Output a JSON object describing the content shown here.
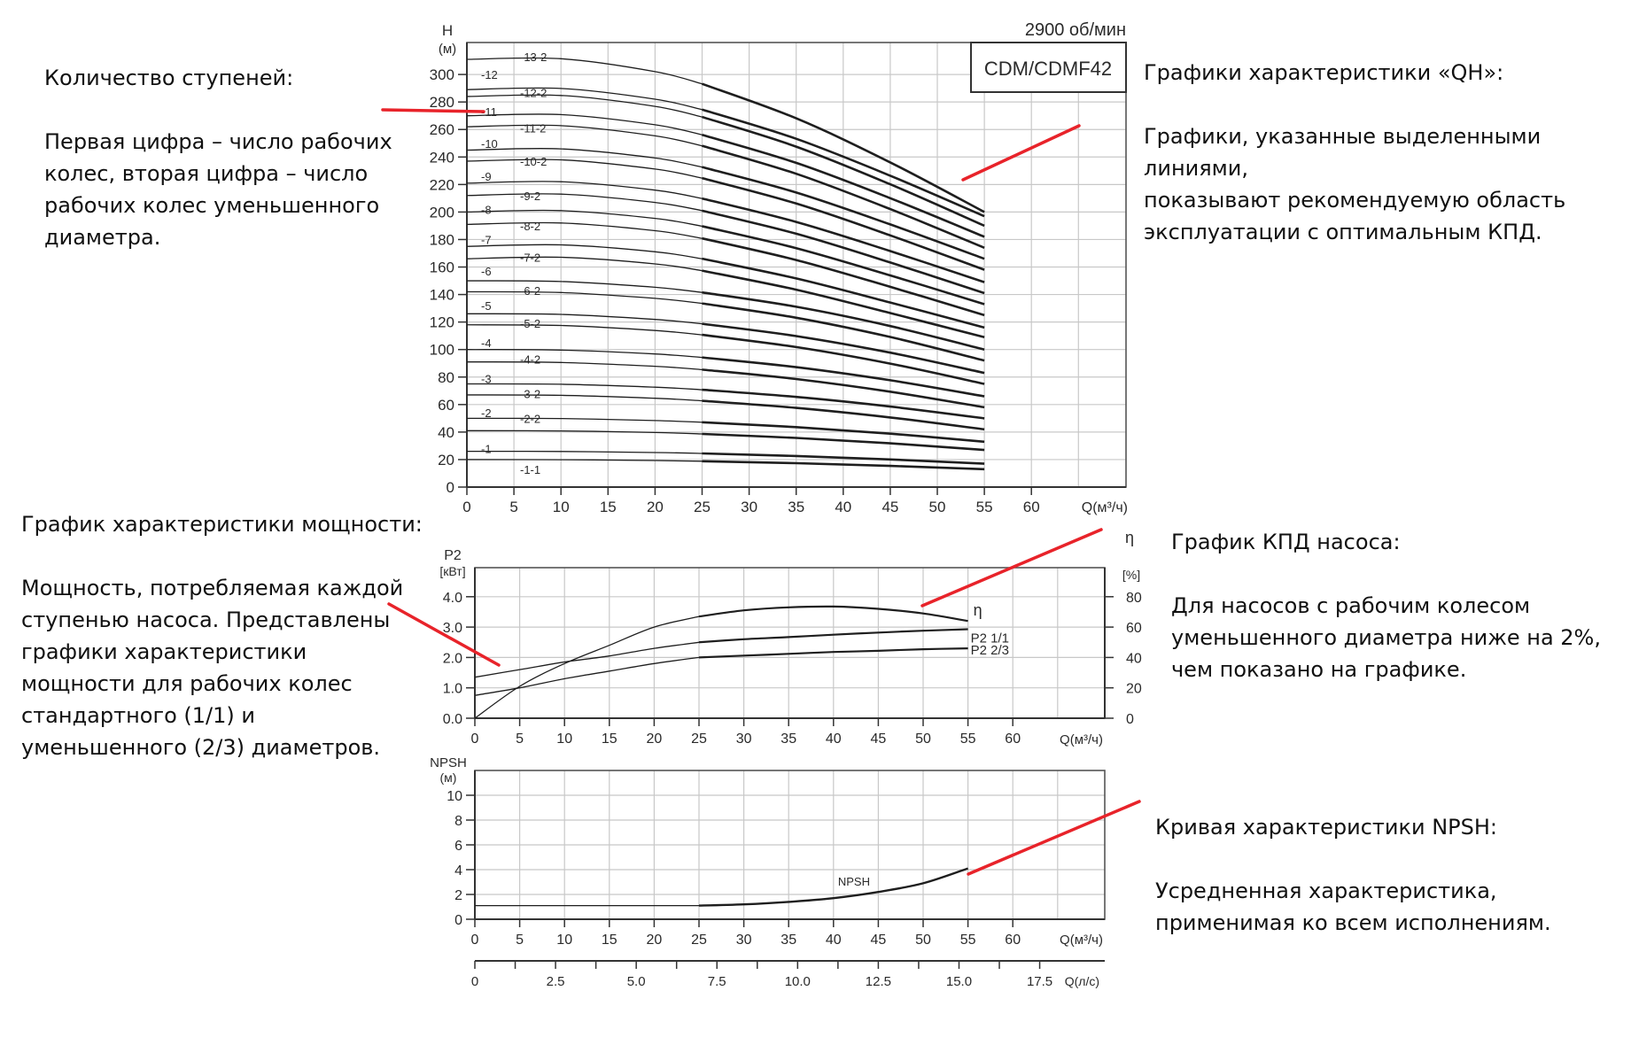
{
  "annotations": {
    "stages": {
      "title": "Количество ступеней:",
      "body": "Первая цифра – число рабочих\nколес, вторая цифра – число\nрабочих колес уменьшенного\nдиаметра."
    },
    "qh": {
      "title": "Графики характеристики «QH»:",
      "body": "Графики, указанные выделенными линиями,\nпоказывают рекомендуемую область\nэксплуатации с оптимальным КПД."
    },
    "power": {
      "title": "График характеристики мощности:",
      "body": "Мощность, потребляемая каждой\nступенью насоса. Представлены\nграфики характеристики\nмощности для рабочих колес\nстандартного (1/1) и\nуменьшенного (2/3) диаметров."
    },
    "efficiency": {
      "title": "График КПД насоса:",
      "body": "Для насосов с рабочим колесом\nуменьшенного диаметра ниже на 2%,\nчем показано на графике."
    },
    "npsh": {
      "title": "Кривая характеристики NPSH:",
      "body": "Усредненная характеристика,\nприменимая ко всем исполнениям."
    }
  },
  "colors": {
    "pointer": "#e8232a",
    "curve": "#1e1e1e",
    "grid": "#c8c8c8",
    "axis": "#333333"
  },
  "chart_data": [
    {
      "type": "line",
      "title": "CDM/CDMF42",
      "subtitle": "2900 об/мин",
      "xlabel": "Q(м³/ч)",
      "ylabel": "H (м)",
      "xticks": [
        0,
        5,
        10,
        15,
        20,
        25,
        30,
        35,
        40,
        45,
        50,
        55,
        60
      ],
      "yticks": [
        0,
        20,
        40,
        60,
        80,
        100,
        120,
        140,
        160,
        180,
        200,
        220,
        240,
        260,
        280,
        300
      ],
      "xlim": [
        0,
        70
      ],
      "ylim": [
        0,
        320
      ],
      "grid": true,
      "highlight_range_x": [
        25,
        55
      ],
      "series": [
        {
          "name": "-1-1",
          "h0": 20,
          "h55": 13
        },
        {
          "name": "-1",
          "h0": 26,
          "h55": 17
        },
        {
          "name": "-2-2",
          "h0": 41,
          "h55": 27
        },
        {
          "name": "-2",
          "h0": 50,
          "h55": 33
        },
        {
          "name": "-3-2",
          "h0": 67,
          "h55": 42
        },
        {
          "name": "-3",
          "h0": 75,
          "h55": 50
        },
        {
          "name": "-4-2",
          "h0": 91,
          "h55": 58
        },
        {
          "name": "-4",
          "h0": 100,
          "h55": 66
        },
        {
          "name": "-5-2",
          "h0": 118,
          "h55": 75
        },
        {
          "name": "-5",
          "h0": 126,
          "h55": 83
        },
        {
          "name": "-6-2",
          "h0": 142,
          "h55": 92
        },
        {
          "name": "-6",
          "h0": 150,
          "h55": 100
        },
        {
          "name": "-7-2",
          "h0": 166,
          "h55": 109
        },
        {
          "name": "-7",
          "h0": 175,
          "h55": 116
        },
        {
          "name": "-8-2",
          "h0": 191,
          "h55": 125
        },
        {
          "name": "-8",
          "h0": 200,
          "h55": 133
        },
        {
          "name": "-9-2",
          "h0": 212,
          "h55": 141
        },
        {
          "name": "-9",
          "h0": 221,
          "h55": 149
        },
        {
          "name": "-10-2",
          "h0": 237,
          "h55": 158
        },
        {
          "name": "-10",
          "h0": 245,
          "h55": 166
        },
        {
          "name": "-11-2",
          "h0": 262,
          "h55": 174
        },
        {
          "name": "-11",
          "h0": 270,
          "h55": 182
        },
        {
          "name": "-12-2",
          "h0": 284,
          "h55": 190
        },
        {
          "name": "-12",
          "h0": 289,
          "h55": 197
        },
        {
          "name": "-13-2",
          "h0": 311,
          "h55": 200
        }
      ],
      "stage_labels_left": [
        "-1",
        "-2",
        "-3",
        "-4",
        "-5",
        "-6",
        "-7",
        "-8",
        "-9",
        "-10",
        "-11",
        "-12"
      ],
      "stage_labels_mid": [
        "-1-1",
        "-2-2",
        "-3-2",
        "-4-2",
        "-5-2",
        "-6-2",
        "-7-2",
        "-8-2",
        "-9-2",
        "-10-2",
        "-11-2",
        "-12-2",
        "-13-2"
      ]
    },
    {
      "type": "line",
      "xlabel": "Q(м³/ч)",
      "ylabel_left": "P2 [кВт]",
      "ylabel_right": "η [%]",
      "xticks": [
        0,
        5,
        10,
        15,
        20,
        25,
        30,
        35,
        40,
        45,
        50,
        55,
        60
      ],
      "yticks_left": [
        "0.0",
        "1.0",
        "2.0",
        "3.0",
        "4.0"
      ],
      "yticks_right": [
        "0",
        "20",
        "40",
        "60",
        "80"
      ],
      "xlim": [
        0,
        70
      ],
      "ylim_left": [
        0,
        5
      ],
      "ylim_right": [
        0,
        100
      ],
      "series": [
        {
          "name": "η",
          "axis": "right",
          "x": [
            0,
            5,
            10,
            15,
            20,
            25,
            30,
            35,
            40,
            45,
            50,
            55
          ],
          "y": [
            0,
            21,
            36,
            48,
            60,
            67,
            71,
            73,
            73.5,
            72,
            69,
            64
          ]
        },
        {
          "name": "P2 1/1",
          "axis": "left",
          "x": [
            0,
            5,
            10,
            15,
            20,
            25,
            30,
            35,
            40,
            45,
            50,
            55
          ],
          "y": [
            1.35,
            1.6,
            1.85,
            2.05,
            2.3,
            2.5,
            2.6,
            2.67,
            2.75,
            2.82,
            2.88,
            2.93
          ]
        },
        {
          "name": "P2 2/3",
          "axis": "left",
          "x": [
            0,
            5,
            10,
            15,
            20,
            25,
            30,
            35,
            40,
            45,
            50,
            55
          ],
          "y": [
            0.75,
            1.0,
            1.3,
            1.55,
            1.8,
            2.0,
            2.06,
            2.12,
            2.18,
            2.22,
            2.27,
            2.3
          ]
        }
      ]
    },
    {
      "type": "line",
      "xlabel": "Q(м³/ч)",
      "ylabel": "NPSH (м)",
      "xticks": [
        0,
        5,
        10,
        15,
        20,
        25,
        30,
        35,
        40,
        45,
        50,
        55,
        60
      ],
      "yticks": [
        0,
        2,
        4,
        6,
        8,
        10
      ],
      "xlim": [
        0,
        70
      ],
      "ylim": [
        0,
        12
      ],
      "secondary_x_axis": {
        "label": "Q(л/с)",
        "ticks": [
          "0",
          "2.5",
          "5.0",
          "7.5",
          "10.0",
          "12.5",
          "15.0",
          "17.5"
        ]
      },
      "series": [
        {
          "name": "NPSH",
          "x": [
            0,
            5,
            10,
            15,
            20,
            25,
            30,
            35,
            40,
            45,
            50,
            55
          ],
          "y": [
            1.1,
            1.1,
            1.1,
            1.1,
            1.1,
            1.1,
            1.2,
            1.4,
            1.7,
            2.2,
            2.9,
            4.1
          ]
        }
      ]
    }
  ]
}
